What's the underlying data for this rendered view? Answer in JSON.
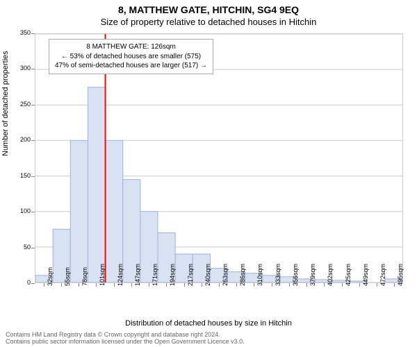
{
  "header": {
    "title_main": "8, MATTHEW GATE, HITCHIN, SG4 9EQ",
    "title_sub": "Size of property relative to detached houses in Hitchin"
  },
  "chart": {
    "type": "histogram",
    "ylim": [
      0,
      350
    ],
    "ytick_step": 50,
    "yticks": [
      0,
      50,
      100,
      150,
      200,
      250,
      300,
      350
    ],
    "ylabel": "Number of detached properties",
    "xlabel": "Distribution of detached houses by size in Hitchin",
    "xticks": [
      "32sqm",
      "55sqm",
      "78sqm",
      "101sqm",
      "124sqm",
      "147sqm",
      "171sqm",
      "194sqm",
      "217sqm",
      "240sqm",
      "263sqm",
      "286sqm",
      "310sqm",
      "333sqm",
      "356sqm",
      "379sqm",
      "402sqm",
      "425sqm",
      "449sqm",
      "472sqm",
      "495sqm"
    ],
    "values": [
      10,
      75,
      200,
      275,
      200,
      145,
      100,
      70,
      40,
      40,
      20,
      15,
      13,
      10,
      8,
      5,
      4,
      3,
      2,
      0,
      5
    ],
    "bar_fill": "#d9e2f3",
    "bar_stroke": "#9db4db",
    "bar_stroke_width": 1,
    "grid_color": "#cccccc",
    "tick_font_size": 9,
    "marker": {
      "bin_index": 4,
      "color": "#ff0000",
      "width": 2
    },
    "annotation": {
      "line1": "8 MATTHEW GATE: 126sqm",
      "line2": "← 53% of detached houses are smaller (575)",
      "line3": "47% of semi-detached houses are larger (517) →",
      "font_size": 10,
      "border_color": "#aaaaaa",
      "bg_color": "#ffffff"
    }
  },
  "footer": {
    "line1": "Contains HM Land Registry data © Crown copyright and database right 2024.",
    "line2": "Contains public sector information licensed under the Open Government Licence v3.0."
  }
}
